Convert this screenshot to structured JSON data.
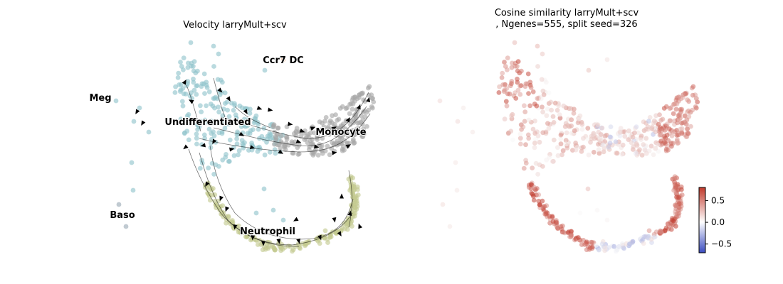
{
  "chart_data": [
    {
      "type": "scatter",
      "title": "Velocity larryMult+scv",
      "axes": "off",
      "grid": false,
      "overlay": "velocity streamlines with arrowheads",
      "clusters": [
        {
          "name": "Undifferentiated",
          "color": "#8fc4cc"
        },
        {
          "name": "Monocyte",
          "color": "#a6a6a6"
        },
        {
          "name": "Neutrophil",
          "color": "#c4c98f"
        },
        {
          "name": "Meg",
          "color": "#8fc4cc"
        },
        {
          "name": "Baso",
          "color": "#9aa9b4"
        },
        {
          "name": "Ccr7 DC",
          "color": "#f2b48c"
        }
      ]
    },
    {
      "type": "scatter",
      "title_line1": "Cosine similarity larryMult+scv",
      "title_line2": ", Ngenes=555, split seed=326",
      "axes": "off",
      "grid": false,
      "colormap": [
        "#3b4cc0",
        "#ffffff",
        "#b40426"
      ],
      "colorbar": {
        "ticks": [
          {
            "value": 0.5,
            "label": "0.5"
          },
          {
            "value": 0.0,
            "label": "0.0"
          },
          {
            "value": -0.5,
            "label": "−0.5"
          }
        ],
        "range": [
          -0.7,
          0.8
        ],
        "placement": "bottom-right"
      }
    }
  ]
}
